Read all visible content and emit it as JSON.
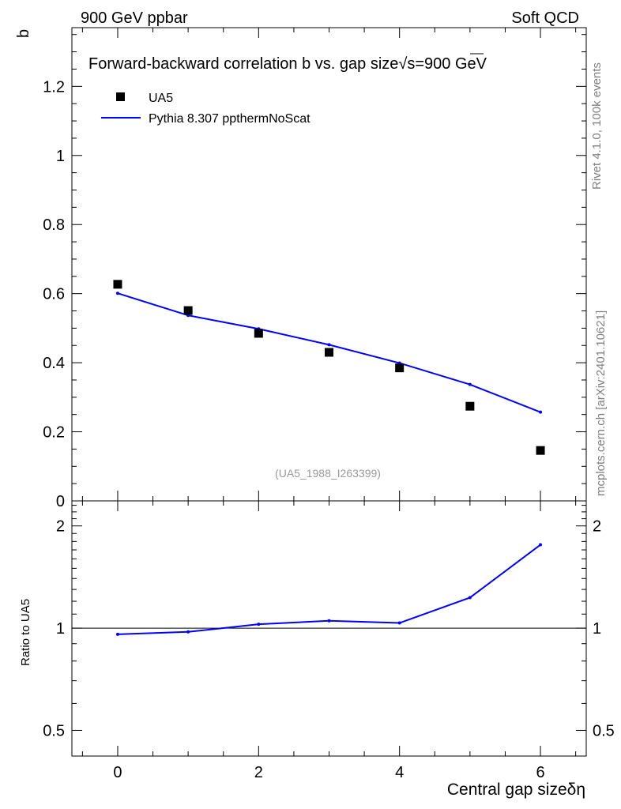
{
  "header": {
    "left": "900 GeV ppbar",
    "right": "Soft QCD"
  },
  "side_labels": {
    "rivet": "Rivet 4.1.0,  100k events",
    "mcplots": "mcplots.cern.ch [arXiv:2401.10621]"
  },
  "chart_data": [
    {
      "type": "scatter",
      "panel": "main",
      "title": "Forward-backward correlation b  vs. gap size",
      "title_suffix": "s=900 GeV",
      "ylabel": "b",
      "xlabel": "",
      "xlim": [
        -0.65,
        6.65
      ],
      "ylim": [
        0,
        1.37
      ],
      "yticks": [
        0,
        0.2,
        0.4,
        0.6,
        0.8,
        1,
        1.2
      ],
      "ytick_labels": [
        "0",
        "0.2",
        "0.4",
        "0.6",
        "0.8",
        "1",
        "1.2"
      ],
      "legend_position": "top-left",
      "analysis_label": "(UA5_1988_I263399)",
      "series": [
        {
          "name": "UA5",
          "kind": "data",
          "color": "#000000",
          "x": [
            0,
            1,
            2,
            3,
            4,
            5,
            6
          ],
          "values": [
            0.627,
            0.551,
            0.485,
            0.43,
            0.385,
            0.274,
            0.146
          ]
        },
        {
          "name": "Pythia 8.307 ppthermNoScat",
          "kind": "mc",
          "color": "#0000ff",
          "x": [
            0,
            1,
            2,
            3,
            4,
            5,
            6
          ],
          "values": [
            0.601,
            0.537,
            0.498,
            0.452,
            0.399,
            0.337,
            0.257
          ]
        }
      ]
    },
    {
      "type": "line",
      "panel": "ratio",
      "ylabel": "Ratio to UA5",
      "xlabel": "Central gap size",
      "xlabel_symbol": "δη",
      "xlim": [
        -0.65,
        6.65
      ],
      "ylim": [
        0.42,
        2.37
      ],
      "xticks": [
        0,
        2,
        4,
        6
      ],
      "xtick_labels": [
        "0",
        "2",
        "4",
        "6"
      ],
      "yticks": [
        0.5,
        1,
        2
      ],
      "ytick_labels": [
        "0.5",
        "1",
        "2"
      ],
      "reference_line": 1,
      "series": [
        {
          "name": "Pythia 8.307 ppthermNoScat / UA5",
          "color": "#0000ff",
          "x": [
            0,
            1,
            2,
            3,
            4,
            5,
            6
          ],
          "values": [
            0.959,
            0.975,
            1.027,
            1.051,
            1.036,
            1.23,
            1.76
          ]
        }
      ]
    }
  ]
}
